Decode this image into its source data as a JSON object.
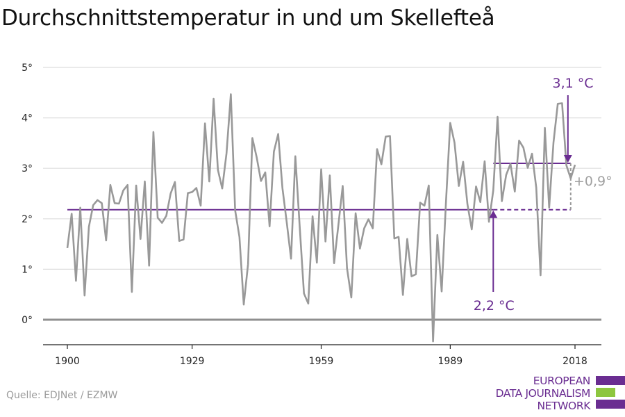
{
  "chart_data": {
    "type": "line",
    "title": "Durchschnittstemperatur in und um Skellefteå",
    "xlabel": "",
    "ylabel": "",
    "xlim": [
      1894,
      2024
    ],
    "ylim": [
      -0.5,
      5.3
    ],
    "x_ticks": [
      1900,
      1929,
      1959,
      1989,
      2018
    ],
    "x_tick_labels": [
      "1900",
      "1929",
      "1959",
      "1989",
      "2018"
    ],
    "y_ticks": [
      0,
      1,
      2,
      3,
      4,
      5
    ],
    "y_tick_labels": [
      "0°",
      "1°",
      "2°",
      "3°",
      "4°",
      "5°"
    ],
    "grid": true,
    "legend": "none",
    "series": [
      {
        "color": "#999999",
        "x": [
          1900,
          1901,
          1902,
          1903,
          1904,
          1905,
          1906,
          1907,
          1908,
          1909,
          1910,
          1911,
          1912,
          1913,
          1914,
          1915,
          1916,
          1917,
          1918,
          1919,
          1920,
          1921,
          1922,
          1923,
          1924,
          1925,
          1926,
          1927,
          1928,
          1929,
          1930,
          1931,
          1932,
          1933,
          1934,
          1935,
          1936,
          1937,
          1938,
          1939,
          1940,
          1941,
          1942,
          1943,
          1944,
          1945,
          1946,
          1947,
          1948,
          1949,
          1950,
          1951,
          1952,
          1953,
          1954,
          1955,
          1956,
          1957,
          1958,
          1959,
          1960,
          1961,
          1962,
          1963,
          1964,
          1965,
          1966,
          1967,
          1968,
          1969,
          1970,
          1971,
          1972,
          1973,
          1974,
          1975,
          1976,
          1977,
          1978,
          1979,
          1980,
          1981,
          1982,
          1983,
          1984,
          1985,
          1986,
          1987,
          1988,
          1989,
          1990,
          1991,
          1992,
          1993,
          1994,
          1995,
          1996,
          1997,
          1998,
          1999,
          2000,
          2001,
          2002,
          2003,
          2004,
          2005,
          2006,
          2007,
          2008,
          2009,
          2010,
          2011,
          2012,
          2013,
          2014,
          2015,
          2016,
          2017,
          2018
        ],
        "y": [
          1.42,
          2.1,
          0.77,
          2.22,
          0.48,
          1.84,
          2.27,
          2.37,
          2.31,
          1.57,
          2.67,
          2.31,
          2.3,
          2.56,
          2.67,
          0.55,
          2.66,
          1.6,
          2.74,
          1.07,
          3.72,
          2.02,
          1.92,
          2.06,
          2.5,
          2.73,
          1.56,
          1.59,
          2.51,
          2.53,
          2.61,
          2.26,
          3.89,
          2.74,
          4.38,
          2.97,
          2.6,
          3.3,
          4.47,
          2.17,
          1.64,
          0.3,
          1.1,
          3.6,
          3.22,
          2.75,
          2.92,
          1.85,
          3.33,
          3.68,
          2.61,
          1.93,
          1.21,
          3.24,
          1.86,
          0.52,
          0.32,
          2.05,
          1.13,
          2.98,
          1.55,
          2.86,
          1.12,
          1.88,
          2.65,
          1.02,
          0.44,
          2.11,
          1.41,
          1.81,
          1.99,
          1.81,
          3.38,
          3.08,
          3.63,
          3.64,
          1.61,
          1.64,
          0.49,
          1.6,
          0.86,
          0.9,
          2.32,
          2.26,
          2.66,
          -0.43,
          1.68,
          0.56,
          2.33,
          3.9,
          3.51,
          2.65,
          3.13,
          2.29,
          1.79,
          2.64,
          2.33,
          3.14,
          1.94,
          2.56,
          4.02,
          2.35,
          2.87,
          3.09,
          2.54,
          3.55,
          3.41,
          3.01,
          3.29,
          2.62,
          0.88,
          3.8,
          2.22,
          3.51,
          4.28,
          4.29,
          3.06,
          2.8,
          3.07
        ]
      }
    ],
    "reference_lines": [
      {
        "label": "2,2 °C",
        "value": 2.18,
        "x_start": 1900,
        "x_solid_end": 1999,
        "x_end": 2017,
        "color": "#6a2d91"
      },
      {
        "label": "3,1 °C",
        "value": 3.1,
        "x_start": 1999,
        "x_end": 2017,
        "color": "#6a2d91"
      }
    ],
    "difference_label": "+0,9°",
    "difference_color": "#a0a0a0"
  },
  "source": "Quelle: EDJNet / EZMW",
  "logo": {
    "lines": [
      "EUROPEAN",
      "DATA JOURNALISM",
      "NETWORK"
    ],
    "text_color": "#6a2d91",
    "bar_colors": [
      "#6a2d91",
      "#8dc63f",
      "#6a2d91"
    ]
  }
}
